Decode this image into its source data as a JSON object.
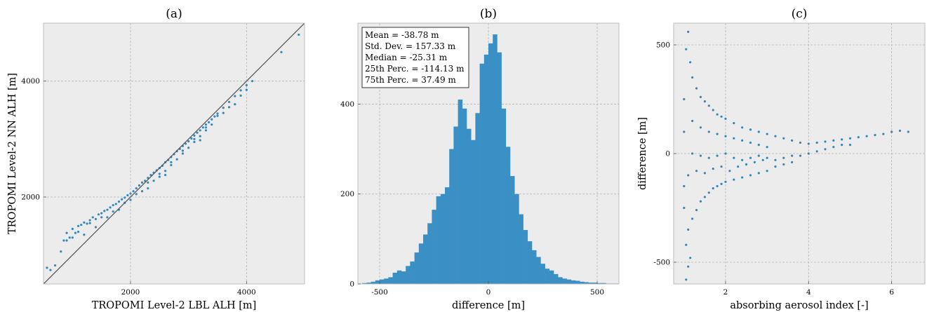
{
  "chart_data": [
    {
      "panel_title": "(a)",
      "type": "scatter",
      "xlabel": "TROPOMI Level-2 LBL ALH [m]",
      "ylabel": "TROPOMI Level-2 NN ALH [m]",
      "xlim": [
        500,
        5000
      ],
      "ylim": [
        500,
        5000
      ],
      "xticks": [
        2000,
        4000
      ],
      "yticks": [
        2000,
        4000
      ],
      "grid": true,
      "reference_line": "y = x",
      "series": [
        {
          "points": [
            [
              560,
              780
            ],
            [
              620,
              740
            ],
            [
              700,
              820
            ],
            [
              800,
              1060
            ],
            [
              850,
              1250
            ],
            [
              900,
              1380
            ],
            [
              950,
              1300
            ],
            [
              1000,
              1450
            ],
            [
              1050,
              1380
            ],
            [
              1100,
              1500
            ],
            [
              1150,
              1520
            ],
            [
              1200,
              1560
            ],
            [
              1250,
              1540
            ],
            [
              1300,
              1600
            ],
            [
              1350,
              1650
            ],
            [
              1400,
              1620
            ],
            [
              1450,
              1700
            ],
            [
              1500,
              1720
            ],
            [
              1550,
              1760
            ],
            [
              1600,
              1780
            ],
            [
              1650,
              1820
            ],
            [
              1700,
              1860
            ],
            [
              1750,
              1880
            ],
            [
              1800,
              1920
            ],
            [
              1850,
              1960
            ],
            [
              1900,
              1990
            ],
            [
              1950,
              2030
            ],
            [
              2000,
              2060
            ],
            [
              2050,
              2100
            ],
            [
              2100,
              2150
            ],
            [
              2150,
              2200
            ],
            [
              2200,
              2250
            ],
            [
              2250,
              2280
            ],
            [
              2300,
              2330
            ],
            [
              2350,
              2380
            ],
            [
              2400,
              2420
            ],
            [
              2450,
              2460
            ],
            [
              2500,
              2500
            ],
            [
              2550,
              2540
            ],
            [
              2600,
              2600
            ],
            [
              2650,
              2640
            ],
            [
              2700,
              2690
            ],
            [
              2750,
              2740
            ],
            [
              2800,
              2790
            ],
            [
              2850,
              2830
            ],
            [
              2900,
              2880
            ],
            [
              2950,
              2920
            ],
            [
              3000,
              2960
            ],
            [
              3050,
              3010
            ],
            [
              3100,
              3060
            ],
            [
              3150,
              3110
            ],
            [
              3200,
              3150
            ],
            [
              3250,
              3200
            ],
            [
              3300,
              3250
            ],
            [
              3350,
              3290
            ],
            [
              3400,
              3340
            ],
            [
              3450,
              3390
            ],
            [
              3500,
              3440
            ],
            [
              3600,
              3540
            ],
            [
              3700,
              3640
            ],
            [
              3800,
              3740
            ],
            [
              3900,
              3840
            ],
            [
              4000,
              3930
            ],
            [
              4100,
              4000
            ],
            [
              4600,
              4500
            ],
            [
              4900,
              4800
            ],
            [
              1200,
              1350
            ],
            [
              1400,
              1480
            ],
            [
              1600,
              1650
            ],
            [
              1800,
              1780
            ],
            [
              2000,
              1950
            ],
            [
              2200,
              2100
            ],
            [
              2400,
              2280
            ],
            [
              2600,
              2450
            ],
            [
              2800,
              2650
            ],
            [
              3000,
              2850
            ],
            [
              3200,
              3050
            ],
            [
              3400,
              3250
            ],
            [
              3600,
              3450
            ],
            [
              3800,
              3600
            ],
            [
              2300,
              2150
            ],
            [
              2500,
              2350
            ],
            [
              2700,
              2550
            ],
            [
              2900,
              2750
            ],
            [
              3100,
              2950
            ],
            [
              3300,
              3150
            ],
            [
              1100,
              1400
            ],
            [
              1000,
              1300
            ],
            [
              900,
              1250
            ],
            [
              1300,
              1550
            ],
            [
              1500,
              1650
            ],
            [
              1700,
              1750
            ],
            [
              1900,
              1900
            ],
            [
              2100,
              2050
            ],
            [
              2300,
              2250
            ],
            [
              2500,
              2400
            ],
            [
              2700,
              2600
            ],
            [
              2900,
              2800
            ],
            [
              3100,
              3000
            ],
            [
              3300,
              3200
            ],
            [
              3500,
              3400
            ],
            [
              3700,
              3550
            ],
            [
              3900,
              3750
            ],
            [
              4000,
              3850
            ],
            [
              3200,
              2980
            ],
            [
              2600,
              2380
            ]
          ]
        }
      ]
    },
    {
      "panel_title": "(b)",
      "type": "bar",
      "subtype": "histogram",
      "xlabel": "difference [m]",
      "ylabel": "",
      "xlim": [
        -600,
        600
      ],
      "ylim": [
        0,
        580
      ],
      "xticks": [
        -500,
        0,
        500
      ],
      "yticks": [
        0,
        200,
        400
      ],
      "grid": true,
      "bin_width": 20,
      "bin_start": -600,
      "values": [
        0,
        2,
        3,
        5,
        8,
        10,
        12,
        15,
        25,
        30,
        28,
        40,
        50,
        70,
        90,
        110,
        135,
        165,
        195,
        200,
        215,
        300,
        350,
        410,
        390,
        345,
        320,
        380,
        490,
        510,
        535,
        555,
        515,
        390,
        305,
        240,
        200,
        155,
        120,
        95,
        75,
        60,
        45,
        34,
        30,
        22,
        15,
        12,
        10,
        8,
        7,
        5,
        4,
        3,
        3,
        2,
        2,
        1,
        1,
        1
      ],
      "statbox": {
        "lines": [
          "Mean = -38.78 m",
          "Std. Dev. = 157.33 m",
          "Median = -25.31 m",
          "25th Perc. = -114.13 m",
          "75th Perc. = 37.49 m"
        ]
      }
    },
    {
      "panel_title": "(c)",
      "type": "scatter",
      "xlabel": "absorbing aerosol index [-]",
      "ylabel": "difference [m]",
      "xlim": [
        0.75,
        6.8
      ],
      "ylim": [
        -600,
        600
      ],
      "xticks": [
        2,
        4,
        6
      ],
      "yticks": [
        -500,
        0,
        500
      ],
      "grid": true,
      "series": [
        {
          "points": [
            [
              1.05,
              -580
            ],
            [
              1.1,
              -520
            ],
            [
              1.15,
              -480
            ],
            [
              1.05,
              -420
            ],
            [
              1.1,
              -350
            ],
            [
              1.2,
              -300
            ],
            [
              1.3,
              -260
            ],
            [
              1.4,
              -220
            ],
            [
              1.5,
              -200
            ],
            [
              1.6,
              -180
            ],
            [
              1.7,
              -160
            ],
            [
              1.8,
              -150
            ],
            [
              1.9,
              -140
            ],
            [
              2.0,
              -130
            ],
            [
              2.2,
              -120
            ],
            [
              2.4,
              -110
            ],
            [
              2.6,
              -100
            ],
            [
              2.8,
              -90
            ],
            [
              3.0,
              -80
            ],
            [
              3.2,
              -60
            ],
            [
              3.4,
              -50
            ],
            [
              3.6,
              -40
            ],
            [
              1.05,
              480
            ],
            [
              1.1,
              560
            ],
            [
              1.15,
              420
            ],
            [
              1.2,
              350
            ],
            [
              1.3,
              300
            ],
            [
              1.4,
              260
            ],
            [
              1.5,
              240
            ],
            [
              1.6,
              220
            ],
            [
              1.7,
              200
            ],
            [
              1.8,
              180
            ],
            [
              1.9,
              170
            ],
            [
              2.0,
              160
            ],
            [
              2.2,
              140
            ],
            [
              2.4,
              120
            ],
            [
              2.6,
              110
            ],
            [
              2.8,
              100
            ],
            [
              3.0,
              90
            ],
            [
              3.2,
              80
            ],
            [
              3.4,
              70
            ],
            [
              3.6,
              60
            ],
            [
              3.8,
              50
            ],
            [
              4.0,
              45
            ],
            [
              4.2,
              50
            ],
            [
              4.4,
              55
            ],
            [
              4.6,
              60
            ],
            [
              4.8,
              65
            ],
            [
              5.0,
              70
            ],
            [
              5.2,
              75
            ],
            [
              5.4,
              80
            ],
            [
              5.6,
              85
            ],
            [
              5.8,
              90
            ],
            [
              6.0,
              100
            ],
            [
              6.2,
              105
            ],
            [
              6.4,
              100
            ],
            [
              1.2,
              0
            ],
            [
              1.4,
              -10
            ],
            [
              1.6,
              -20
            ],
            [
              1.8,
              -10
            ],
            [
              2.0,
              0
            ],
            [
              2.2,
              -20
            ],
            [
              2.4,
              -30
            ],
            [
              2.6,
              -20
            ],
            [
              2.8,
              -10
            ],
            [
              3.0,
              -20
            ],
            [
              3.2,
              -30
            ],
            [
              3.4,
              -20
            ],
            [
              3.6,
              -10
            ],
            [
              3.8,
              -10
            ],
            [
              4.0,
              0
            ],
            [
              4.2,
              10
            ],
            [
              4.4,
              20
            ],
            [
              4.6,
              30
            ],
            [
              4.8,
              40
            ],
            [
              5.0,
              40
            ],
            [
              1.1,
              -100
            ],
            [
              1.3,
              -80
            ],
            [
              1.5,
              -90
            ],
            [
              1.7,
              -70
            ],
            [
              1.9,
              -60
            ],
            [
              2.1,
              -80
            ],
            [
              2.3,
              -60
            ],
            [
              2.5,
              -50
            ],
            [
              2.7,
              -40
            ],
            [
              2.9,
              -30
            ],
            [
              1.0,
              -250
            ],
            [
              1.0,
              -150
            ],
            [
              1.0,
              100
            ],
            [
              1.0,
              250
            ],
            [
              1.2,
              150
            ],
            [
              1.4,
              120
            ],
            [
              1.6,
              100
            ],
            [
              1.8,
              90
            ],
            [
              2.0,
              80
            ],
            [
              2.2,
              70
            ],
            [
              2.4,
              60
            ],
            [
              2.6,
              50
            ],
            [
              2.8,
              40
            ],
            [
              3.0,
              30
            ]
          ]
        }
      ]
    }
  ],
  "colors": {
    "points": "#3388bb",
    "bars": "#3a8fc4",
    "axes_face": "#ececec",
    "grid": "#b5b5b5",
    "frame": "#bcbcbc",
    "reference_line": "#555555"
  }
}
